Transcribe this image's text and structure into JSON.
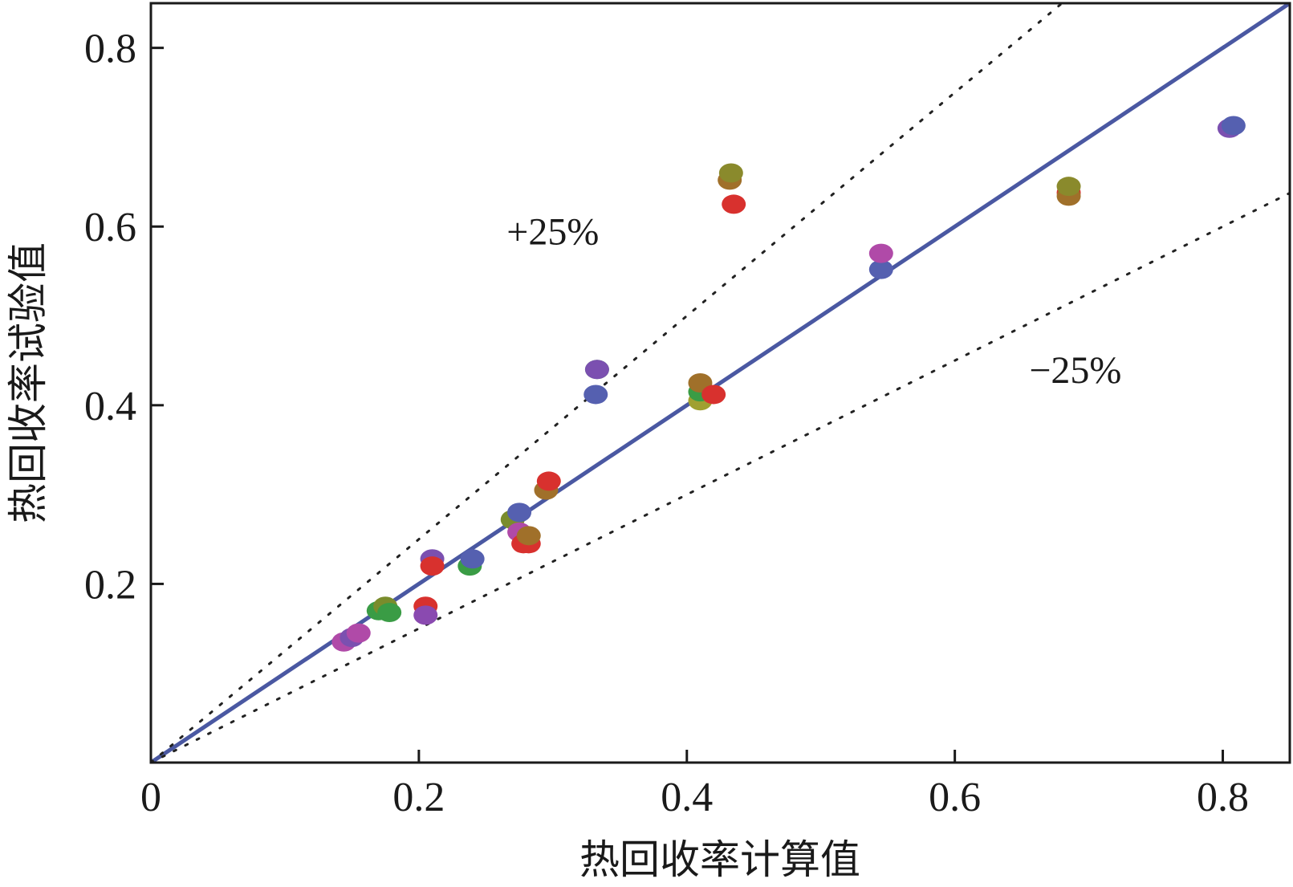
{
  "chart_data": {
    "type": "scatter",
    "title": "",
    "xlabel": "热回收率计算值",
    "ylabel": "热回收率试验值",
    "xlim": [
      0,
      0.85
    ],
    "ylim": [
      0,
      0.85
    ],
    "x_ticks": [
      "0",
      "0.2",
      "0.4",
      "0.6",
      "0.8"
    ],
    "y_ticks": [
      "0.2",
      "0.4",
      "0.6",
      "0.8"
    ],
    "x_tick_values": [
      0,
      0.2,
      0.4,
      0.6,
      0.8
    ],
    "y_tick_values": [
      0.2,
      0.4,
      0.6,
      0.8
    ],
    "grid": false,
    "reference_lines": [
      {
        "label": "",
        "slope": 1.0,
        "style": "solid",
        "color": "#4a58a2"
      },
      {
        "label": "+25%",
        "slope": 1.25,
        "style": "dotted",
        "color": "#222222"
      },
      {
        "label": "−25%",
        "slope": 0.75,
        "style": "dotted",
        "color": "#222222"
      }
    ],
    "annotations": [
      {
        "text": "+25%",
        "x": 0.3,
        "y": 0.58
      },
      {
        "text": "−25%",
        "x": 0.69,
        "y": 0.425
      }
    ],
    "points": [
      {
        "x": 0.144,
        "y": 0.135,
        "color": "#b04aa8"
      },
      {
        "x": 0.15,
        "y": 0.14,
        "color": "#7b50b0"
      },
      {
        "x": 0.155,
        "y": 0.145,
        "color": "#b04aa8"
      },
      {
        "x": 0.17,
        "y": 0.17,
        "color": "#3a9c45"
      },
      {
        "x": 0.175,
        "y": 0.175,
        "color": "#7a8c2c"
      },
      {
        "x": 0.178,
        "y": 0.168,
        "color": "#3a9c45"
      },
      {
        "x": 0.205,
        "y": 0.175,
        "color": "#d8312e"
      },
      {
        "x": 0.205,
        "y": 0.165,
        "color": "#8a4ab0"
      },
      {
        "x": 0.21,
        "y": 0.228,
        "color": "#7b50b0"
      },
      {
        "x": 0.21,
        "y": 0.22,
        "color": "#d8312e"
      },
      {
        "x": 0.238,
        "y": 0.22,
        "color": "#3a9c45"
      },
      {
        "x": 0.24,
        "y": 0.228,
        "color": "#5560b0"
      },
      {
        "x": 0.27,
        "y": 0.272,
        "color": "#7a8c2c"
      },
      {
        "x": 0.275,
        "y": 0.28,
        "color": "#5560b0"
      },
      {
        "x": 0.275,
        "y": 0.258,
        "color": "#b04aa8"
      },
      {
        "x": 0.278,
        "y": 0.245,
        "color": "#d8312e"
      },
      {
        "x": 0.282,
        "y": 0.245,
        "color": "#d8312e"
      },
      {
        "x": 0.282,
        "y": 0.254,
        "color": "#a0702a"
      },
      {
        "x": 0.295,
        "y": 0.305,
        "color": "#a0702a"
      },
      {
        "x": 0.297,
        "y": 0.315,
        "color": "#d8312e"
      },
      {
        "x": 0.332,
        "y": 0.412,
        "color": "#5560b0"
      },
      {
        "x": 0.333,
        "y": 0.44,
        "color": "#3a9c45"
      },
      {
        "x": 0.333,
        "y": 0.44,
        "color": "#7b50b0"
      },
      {
        "x": 0.41,
        "y": 0.405,
        "color": "#a0a030"
      },
      {
        "x": 0.41,
        "y": 0.415,
        "color": "#3a9c45"
      },
      {
        "x": 0.41,
        "y": 0.425,
        "color": "#a0702a"
      },
      {
        "x": 0.42,
        "y": 0.412,
        "color": "#d8312e"
      },
      {
        "x": 0.432,
        "y": 0.652,
        "color": "#a0702a"
      },
      {
        "x": 0.433,
        "y": 0.66,
        "color": "#8a8a2c"
      },
      {
        "x": 0.435,
        "y": 0.625,
        "color": "#d8312e"
      },
      {
        "x": 0.545,
        "y": 0.552,
        "color": "#5560b0"
      },
      {
        "x": 0.545,
        "y": 0.57,
        "color": "#b04aa8"
      },
      {
        "x": 0.685,
        "y": 0.638,
        "color": "#d8312e"
      },
      {
        "x": 0.685,
        "y": 0.634,
        "color": "#a0702a"
      },
      {
        "x": 0.685,
        "y": 0.645,
        "color": "#8a8a2c"
      },
      {
        "x": 0.805,
        "y": 0.71,
        "color": "#7b50b0"
      },
      {
        "x": 0.808,
        "y": 0.713,
        "color": "#5560b0"
      }
    ]
  }
}
